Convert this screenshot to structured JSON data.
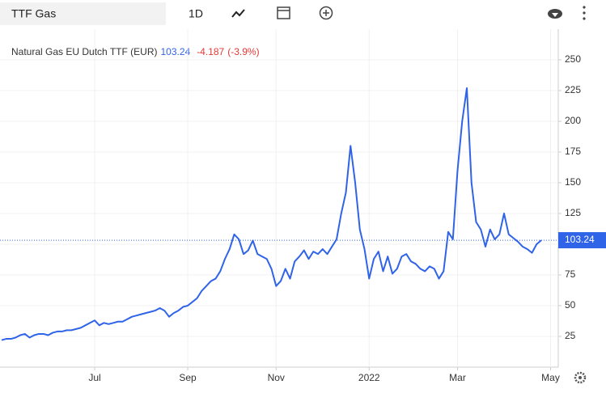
{
  "ui": {
    "search": "TTF Gas",
    "interval": "1D",
    "price_change": "-4.187",
    "price_change_pct": "(-3.9%)"
  },
  "chart_data": {
    "type": "line",
    "categories": [
      null,
      null,
      null,
      null,
      null,
      null,
      null,
      null,
      null,
      null,
      null,
      null,
      null,
      null,
      null,
      null,
      null,
      null,
      null,
      null,
      "Jul",
      null,
      null,
      null,
      null,
      null,
      null,
      null,
      null,
      null,
      null,
      null,
      null,
      null,
      null,
      null,
      null,
      null,
      null,
      null,
      "Sep",
      null,
      null,
      null,
      null,
      null,
      null,
      null,
      null,
      null,
      null,
      null,
      null,
      null,
      null,
      null,
      null,
      null,
      null,
      "Nov",
      null,
      null,
      null,
      null,
      null,
      null,
      null,
      null,
      null,
      null,
      null,
      null,
      null,
      null,
      null,
      null,
      null,
      null,
      null,
      "2022",
      null,
      null,
      null,
      null,
      null,
      null,
      null,
      null,
      null,
      null,
      null,
      null,
      null,
      null,
      null,
      null,
      null,
      null,
      "Mar",
      null,
      null,
      null,
      null,
      null,
      null,
      null,
      null,
      null,
      null,
      null,
      null,
      null,
      null,
      null,
      null,
      null,
      null,
      null,
      "May"
    ],
    "series": [
      {
        "name": "Natural Gas EU Dutch TTF (EUR)",
        "color": "#2f63e8",
        "values": [
          22,
          23,
          23,
          24,
          26,
          27,
          24,
          26,
          27,
          27,
          26,
          28,
          29,
          29,
          30,
          30,
          31,
          32,
          34,
          36,
          38,
          34,
          36,
          35,
          36,
          37,
          37,
          39,
          41,
          42,
          43,
          44,
          45,
          46,
          48,
          46,
          41,
          44,
          46,
          49,
          50,
          53,
          56,
          62,
          66,
          70,
          72,
          78,
          88,
          96,
          108,
          104,
          92,
          95,
          103,
          92,
          90,
          88,
          80,
          66,
          70,
          80,
          72,
          86,
          90,
          95,
          88,
          94,
          92,
          96,
          92,
          98,
          104,
          125,
          142,
          180,
          150,
          112,
          96,
          72,
          88,
          94,
          78,
          90,
          76,
          80,
          90,
          92,
          86,
          84,
          80,
          78,
          82,
          80,
          72,
          78,
          110,
          104,
          160,
          200,
          227,
          150,
          118,
          112,
          98,
          112,
          104,
          108,
          125,
          108,
          105,
          102,
          98,
          96,
          93,
          100,
          103.24,
          null,
          null
        ]
      }
    ],
    "ylim": [
      0,
      275
    ],
    "yticks": [
      25,
      50,
      75,
      100,
      125,
      150,
      175,
      200,
      225,
      250
    ],
    "grid": true
  }
}
